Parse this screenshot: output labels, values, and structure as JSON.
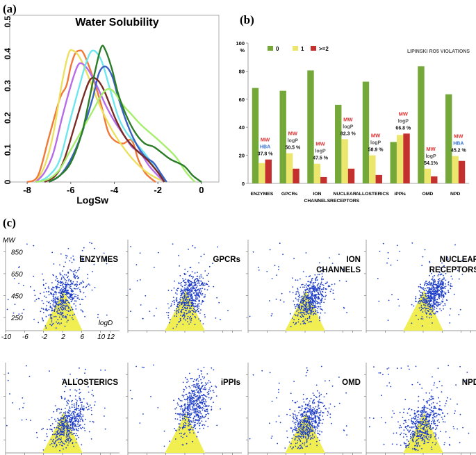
{
  "panel_labels": {
    "a": "(a)",
    "b": "(b)",
    "c": "(c)"
  },
  "chart_data": [
    {
      "id": "a",
      "type": "line",
      "title": "Water Solubility",
      "xlabel": "LogSw",
      "ylabel": "",
      "xlim": [
        -8.8,
        0.8
      ],
      "ylim": [
        0,
        0.52
      ],
      "x_ticks": [
        -8,
        -6,
        -4,
        -2,
        0
      ],
      "y_ticks": [
        0,
        0.1,
        0.2,
        0.3,
        0.4,
        0.5
      ],
      "series": [
        {
          "name": "orange",
          "color": "#f07838",
          "x": [
            -8.0,
            -7.5,
            -7.0,
            -6.5,
            -6.2,
            -6.0,
            -5.8,
            -5.6,
            -5.4,
            -5.0,
            -4.6,
            -4.3,
            -4.0,
            -3.6,
            -3.2,
            -2.9,
            -2.6,
            -2.3,
            -2.1
          ],
          "y": [
            0.0,
            0.02,
            0.14,
            0.26,
            0.3,
            0.36,
            0.4,
            0.41,
            0.4,
            0.33,
            0.24,
            0.16,
            0.13,
            0.12,
            0.13,
            0.07,
            0.03,
            0.01,
            0.0
          ]
        },
        {
          "name": "yellow",
          "color": "#ece060",
          "x": [
            -7.6,
            -7.2,
            -6.8,
            -6.4,
            -6.1,
            -5.9,
            -5.6,
            -5.2,
            -4.8,
            -4.4,
            -4.0,
            -3.5,
            -3.0,
            -2.5,
            -2.0,
            -1.6
          ],
          "y": [
            0.0,
            0.05,
            0.15,
            0.31,
            0.4,
            0.41,
            0.39,
            0.33,
            0.26,
            0.2,
            0.15,
            0.1,
            0.06,
            0.03,
            0.01,
            0.0
          ]
        },
        {
          "name": "violet",
          "color": "#b66ce8",
          "x": [
            -7.6,
            -7.2,
            -6.8,
            -6.4,
            -6.0,
            -5.7,
            -5.5,
            -5.2,
            -4.8,
            -4.4,
            -4.0,
            -3.6,
            -3.2,
            -2.8,
            -2.4,
            -2.0,
            -1.7
          ],
          "y": [
            0.0,
            0.03,
            0.09,
            0.2,
            0.3,
            0.36,
            0.37,
            0.35,
            0.3,
            0.24,
            0.19,
            0.15,
            0.11,
            0.09,
            0.05,
            0.02,
            0.0
          ]
        },
        {
          "name": "cyan",
          "color": "#6ee6ee",
          "x": [
            -7.5,
            -7.0,
            -6.5,
            -6.0,
            -5.6,
            -5.3,
            -5.0,
            -4.6,
            -4.2,
            -3.8,
            -3.4,
            -3.0,
            -2.5,
            -2.0,
            -1.6
          ],
          "y": [
            0.0,
            0.02,
            0.07,
            0.2,
            0.3,
            0.37,
            0.41,
            0.38,
            0.29,
            0.2,
            0.15,
            0.12,
            0.08,
            0.03,
            0.0
          ]
        },
        {
          "name": "blue",
          "color": "#3a62c2",
          "x": [
            -7.0,
            -6.5,
            -6.0,
            -5.5,
            -5.0,
            -4.7,
            -4.4,
            -4.1,
            -3.8,
            -3.4,
            -3.0,
            -2.6,
            -2.2,
            -1.9,
            -1.6
          ],
          "y": [
            0.0,
            0.02,
            0.07,
            0.15,
            0.26,
            0.34,
            0.36,
            0.33,
            0.26,
            0.18,
            0.12,
            0.08,
            0.06,
            0.03,
            0.0
          ]
        },
        {
          "name": "brown",
          "color": "#7a2a24",
          "x": [
            -7.2,
            -6.7,
            -6.3,
            -5.8,
            -5.4,
            -5.1,
            -4.8,
            -4.5,
            -4.2,
            -3.9,
            -3.5,
            -3.0,
            -2.5,
            -2.0,
            -1.7
          ],
          "y": [
            0.0,
            0.02,
            0.07,
            0.18,
            0.27,
            0.32,
            0.32,
            0.29,
            0.24,
            0.19,
            0.14,
            0.1,
            0.07,
            0.03,
            0.0
          ]
        },
        {
          "name": "light-green",
          "color": "#a6ee6e",
          "x": [
            -7.6,
            -7.0,
            -6.5,
            -6.0,
            -5.5,
            -5.0,
            -4.6,
            -4.3,
            -4.0,
            -3.6,
            -3.2,
            -2.8,
            -2.3,
            -1.8,
            -1.2,
            -0.7,
            -0.3
          ],
          "y": [
            0.0,
            0.01,
            0.04,
            0.1,
            0.16,
            0.22,
            0.27,
            0.29,
            0.28,
            0.24,
            0.21,
            0.18,
            0.15,
            0.12,
            0.08,
            0.03,
            0.0
          ]
        },
        {
          "name": "dark-green",
          "color": "#2b7c28",
          "x": [
            -7.0,
            -6.5,
            -6.0,
            -5.5,
            -5.2,
            -4.9,
            -4.6,
            -4.4,
            -4.1,
            -3.8,
            -3.4,
            -3.0,
            -2.6,
            -2.2,
            -1.8,
            -1.4,
            -0.8,
            -0.4,
            0.0
          ],
          "y": [
            0.0,
            0.02,
            0.06,
            0.15,
            0.24,
            0.34,
            0.42,
            0.41,
            0.35,
            0.27,
            0.2,
            0.15,
            0.12,
            0.11,
            0.09,
            0.07,
            0.05,
            0.02,
            0.0
          ]
        }
      ]
    },
    {
      "id": "b",
      "type": "bar",
      "title": "LIPINSKI RO5 VIOLATIONS",
      "ylabel": "%",
      "ylim": [
        0,
        100
      ],
      "y_ticks": [
        0,
        20,
        40,
        60,
        80,
        100
      ],
      "categories": [
        "ENZYMES",
        "GPCRs",
        "ION CHANNELS",
        "NUCLEAR RECEPTORS",
        "ALLOSTERICS",
        "iPPIs",
        "OMD",
        "NPD"
      ],
      "series": [
        {
          "name": "0",
          "color": "#74a838",
          "values": [
            68,
            66,
            80.5,
            56,
            72.5,
            29.5,
            83.5,
            63.5
          ]
        },
        {
          "name": "1",
          "color": "#ece66c",
          "values": [
            14.5,
            21.5,
            14,
            31.5,
            20,
            34.5,
            10.5,
            19.5
          ]
        },
        {
          "name": ">=2",
          "color": "#c4302e",
          "values": [
            17,
            10.5,
            4.5,
            10.5,
            6,
            35.5,
            5,
            16
          ]
        }
      ],
      "annotations": [
        {
          "category": "ENZYMES",
          "lines": [
            {
              "text": "MW",
              "color": "#e03030"
            },
            {
              "text": "HBA",
              "color": "#3070d0"
            },
            {
              "text": "37.8 %",
              "color": "#111111"
            }
          ]
        },
        {
          "category": "GPCRs",
          "lines": [
            {
              "text": "MW",
              "color": "#e03030"
            },
            {
              "text": "logP",
              "color": "#555555"
            },
            {
              "text": "50.5 %",
              "color": "#111111"
            }
          ]
        },
        {
          "category": "ION CHANNELS",
          "lines": [
            {
              "text": "MW",
              "color": "#e03030"
            },
            {
              "text": "logP",
              "color": "#555555"
            },
            {
              "text": "47.5 %",
              "color": "#111111"
            }
          ]
        },
        {
          "category": "NUCLEAR RECEPTORS",
          "lines": [
            {
              "text": "MW",
              "color": "#e03030"
            },
            {
              "text": "logP",
              "color": "#555555"
            },
            {
              "text": "82.3 %",
              "color": "#111111"
            }
          ]
        },
        {
          "category": "ALLOSTERICS",
          "lines": [
            {
              "text": "MW",
              "color": "#e03030"
            },
            {
              "text": "logP",
              "color": "#555555"
            },
            {
              "text": "58.9 %",
              "color": "#111111"
            }
          ]
        },
        {
          "category": "iPPIs",
          "lines": [
            {
              "text": "MW",
              "color": "#e03030"
            },
            {
              "text": "logP",
              "color": "#555555"
            },
            {
              "text": "66.8 %",
              "color": "#111111"
            }
          ]
        },
        {
          "category": "OMD",
          "lines": [
            {
              "text": "MW",
              "color": "#e03030"
            },
            {
              "text": "logP",
              "color": "#555555"
            },
            {
              "text": "54.1%",
              "color": "#111111"
            }
          ]
        },
        {
          "category": "NPD",
          "lines": [
            {
              "text": "MW",
              "color": "#e03030"
            },
            {
              "text": "HBA",
              "color": "#3070d0"
            },
            {
              "text": "45.2 %",
              "color": "#111111"
            }
          ]
        }
      ]
    },
    {
      "id": "c",
      "type": "scatter",
      "xlabel": "logD",
      "ylabel": "MW",
      "xlim": [
        -10,
        14
      ],
      "ylim": [
        130,
        960
      ],
      "x_ticks": [
        -10,
        -6,
        -2,
        2,
        6,
        10,
        12
      ],
      "y_ticks": [
        250,
        450,
        650,
        850
      ],
      "point_color": "#1c3cc8",
      "ro5_region_color": "#f0ee50",
      "ro5_region": {
        "apex": [
          2.2,
          500
        ],
        "base_left": -2.2,
        "base_right": 6.2
      },
      "panels": [
        {
          "title": [
            "ENZYMES"
          ],
          "center": [
            2.2,
            440
          ],
          "spread": [
            2.0,
            115
          ],
          "tail": 0.12
        },
        {
          "title": [
            "GPCRs"
          ],
          "center": [
            3.0,
            440
          ],
          "spread": [
            1.7,
            100
          ],
          "tail": 0.08
        },
        {
          "title": [
            "ION",
            "CHANNELS"
          ],
          "center": [
            3.2,
            420
          ],
          "spread": [
            1.8,
            95
          ],
          "tail": 0.08
        },
        {
          "title": [
            "NUCLEAR",
            "RECEPTORS"
          ],
          "center": [
            4.2,
            460
          ],
          "spread": [
            1.5,
            85
          ],
          "tail": 0.05
        },
        {
          "title": [
            "ALLOSTERICS"
          ],
          "center": [
            3.2,
            400
          ],
          "spread": [
            1.9,
            95
          ],
          "tail": 0.08
        },
        {
          "title": [
            "iPPIs"
          ],
          "center": [
            4.0,
            560
          ],
          "spread": [
            1.8,
            120
          ],
          "tail": 0.05
        },
        {
          "title": [
            "OMD"
          ],
          "center": [
            2.6,
            410
          ],
          "spread": [
            1.8,
            100
          ],
          "tail": 0.08
        },
        {
          "title": [
            "NPD"
          ],
          "center": [
            2.0,
            390
          ],
          "spread": [
            2.0,
            110
          ],
          "tail": 0.15
        }
      ]
    }
  ]
}
